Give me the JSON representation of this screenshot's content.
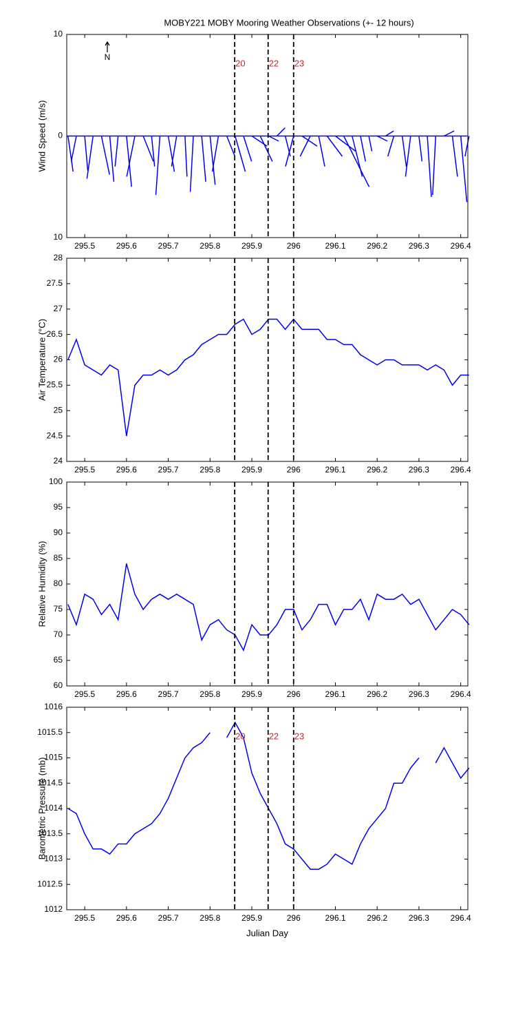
{
  "markers": {
    "x": [
      295.859,
      295.939,
      296.0
    ],
    "labels": [
      "20",
      "22",
      "23"
    ],
    "color": "#c0282d"
  },
  "chart_data": [
    {
      "type": "stick",
      "title": "MOBY221 MOBY Mooring Weather Observations (+- 12 hours)",
      "ylabel": "Wind Speed (m/s)",
      "north_label": "N",
      "color": "#0000ee",
      "x": [
        295.46,
        295.48,
        295.5,
        295.52,
        295.54,
        295.56,
        295.58,
        295.6,
        295.62,
        295.64,
        295.66,
        295.68,
        295.7,
        295.72,
        295.74,
        295.76,
        295.78,
        295.8,
        295.82,
        295.84,
        295.86,
        295.88,
        295.9,
        295.92,
        295.94,
        295.96,
        295.98,
        296.0,
        296.02,
        296.04,
        296.06,
        296.08,
        296.1,
        296.12,
        296.14,
        296.16,
        296.18,
        296.2,
        296.22,
        296.24,
        296.26,
        296.28,
        296.3,
        296.32,
        296.34,
        296.36,
        296.38,
        296.4,
        296.42
      ],
      "u": [
        0.5,
        -0.5,
        0.3,
        -0.6,
        0.8,
        0.4,
        -0.3,
        0.5,
        -0.8,
        1.0,
        0.3,
        -0.4,
        0.6,
        -0.5,
        0.2,
        -0.3,
        0.4,
        0.5,
        -0.6,
        0.8,
        1.0,
        0.8,
        1.5,
        1.2,
        1.0,
        0.8,
        0.5,
        -0.8,
        1.5,
        -1.0,
        0.6,
        1.5,
        2.0,
        2.5,
        1.0,
        0.5,
        0.3,
        1.0,
        0.8,
        -0.6,
        0.4,
        -0.5,
        0.3,
        0.4,
        -0.3,
        1.0,
        0.5,
        0.6,
        -0.4
      ],
      "v": [
        -3.5,
        -2.5,
        -3.4,
        -4.2,
        -3.8,
        -4.5,
        -3.0,
        -5.0,
        -4.0,
        -2.5,
        -3.0,
        -5.8,
        -3.5,
        -3.0,
        -4.0,
        -5.5,
        -4.5,
        -4.8,
        -3.5,
        -2.0,
        -3.5,
        -2.5,
        -1.0,
        -2.5,
        -0.5,
        0.8,
        -2.0,
        -3.0,
        -1.0,
        -2.0,
        -3.0,
        -2.0,
        -1.5,
        -5.0,
        -4.0,
        -2.5,
        -1.5,
        -0.5,
        0.5,
        -2.0,
        -3.0,
        -4.0,
        -2.5,
        -6.0,
        -5.8,
        0.5,
        -4.0,
        -6.5,
        -2.0
      ],
      "xlim": [
        295.457,
        296.417
      ],
      "xticks": [
        295.5,
        295.6,
        295.7,
        295.8,
        295.9,
        296,
        296.1,
        296.2,
        296.3,
        296.4
      ],
      "ylim": [
        -10,
        10
      ],
      "yticks": [
        {
          "value": -10,
          "label": "10"
        },
        0,
        10
      ]
    },
    {
      "type": "line",
      "ylabel": "Air Temperature (°C)",
      "color": "#0000ee",
      "x": [
        295.46,
        295.48,
        295.5,
        295.52,
        295.54,
        295.56,
        295.58,
        295.6,
        295.62,
        295.64,
        295.66,
        295.68,
        295.7,
        295.72,
        295.74,
        295.76,
        295.78,
        295.8,
        295.82,
        295.84,
        295.86,
        295.88,
        295.9,
        295.92,
        295.94,
        295.96,
        295.98,
        296.0,
        296.02,
        296.04,
        296.06,
        296.08,
        296.1,
        296.12,
        296.14,
        296.16,
        296.18,
        296.2,
        296.22,
        296.24,
        296.26,
        296.28,
        296.3,
        296.32,
        296.34,
        296.36,
        296.38,
        296.4,
        296.42
      ],
      "values": [
        26.0,
        26.4,
        25.9,
        25.8,
        25.7,
        25.9,
        25.8,
        24.5,
        25.5,
        25.7,
        25.7,
        25.8,
        25.7,
        25.8,
        26.0,
        26.1,
        26.3,
        26.4,
        26.5,
        26.5,
        26.7,
        26.8,
        26.5,
        26.6,
        26.8,
        26.8,
        26.6,
        26.8,
        26.6,
        26.6,
        26.6,
        26.4,
        26.4,
        26.3,
        26.3,
        26.1,
        26.0,
        25.9,
        26.0,
        26.0,
        25.9,
        25.9,
        25.9,
        25.8,
        25.9,
        25.8,
        25.5,
        25.7,
        25.7
      ],
      "xlim": [
        295.457,
        296.417
      ],
      "xticks": [
        295.5,
        295.6,
        295.7,
        295.8,
        295.9,
        296,
        296.1,
        296.2,
        296.3,
        296.4
      ],
      "ylim": [
        24,
        28
      ],
      "yticks": [
        24,
        24.5,
        25,
        25.5,
        26,
        26.5,
        27,
        27.5,
        28
      ]
    },
    {
      "type": "line",
      "ylabel": "Relative Humidity (%)",
      "color": "#0000ee",
      "x": [
        295.46,
        295.48,
        295.5,
        295.52,
        295.54,
        295.56,
        295.58,
        295.6,
        295.62,
        295.64,
        295.66,
        295.68,
        295.7,
        295.72,
        295.74,
        295.76,
        295.78,
        295.8,
        295.82,
        295.84,
        295.86,
        295.88,
        295.9,
        295.92,
        295.94,
        295.96,
        295.98,
        296.0,
        296.02,
        296.04,
        296.06,
        296.08,
        296.1,
        296.12,
        296.14,
        296.16,
        296.18,
        296.2,
        296.22,
        296.24,
        296.26,
        296.28,
        296.3,
        296.32,
        296.34,
        296.36,
        296.38,
        296.4,
        296.42
      ],
      "values": [
        76,
        72,
        78,
        77,
        74,
        76,
        73,
        84,
        78,
        75,
        77,
        78,
        77,
        78,
        77,
        76,
        69,
        72,
        73,
        71,
        70,
        67,
        72,
        70,
        70,
        72,
        75,
        75,
        71,
        73,
        76,
        76,
        72,
        75,
        75,
        77,
        73,
        78,
        77,
        77,
        78,
        76,
        77,
        74,
        71,
        73,
        75,
        74,
        72
      ],
      "xlim": [
        295.457,
        296.417
      ],
      "xticks": [
        295.5,
        295.6,
        295.7,
        295.8,
        295.9,
        296,
        296.1,
        296.2,
        296.3,
        296.4
      ],
      "ylim": [
        60,
        100
      ],
      "yticks": [
        60,
        65,
        70,
        75,
        80,
        85,
        90,
        95,
        100
      ]
    },
    {
      "type": "line",
      "ylabel": "Barometric Pressure (mb)",
      "xlabel": "Julian Day",
      "color": "#0000ee",
      "x": [
        295.46,
        295.48,
        295.5,
        295.52,
        295.54,
        295.56,
        295.58,
        295.6,
        295.62,
        295.64,
        295.66,
        295.68,
        295.7,
        295.72,
        295.74,
        295.76,
        295.78,
        295.8,
        295.82,
        295.84,
        295.86,
        295.88,
        295.9,
        295.92,
        295.94,
        295.96,
        295.98,
        296.0,
        296.02,
        296.04,
        296.06,
        296.08,
        296.1,
        296.12,
        296.14,
        296.16,
        296.18,
        296.2,
        296.22,
        296.24,
        296.26,
        296.28,
        296.3,
        296.32,
        296.34,
        296.36,
        296.38,
        296.4,
        296.42
      ],
      "values": [
        1014.0,
        1013.9,
        1013.5,
        1013.2,
        1013.2,
        1013.1,
        1013.3,
        1013.3,
        1013.5,
        1013.6,
        1013.7,
        1013.9,
        1014.2,
        1014.6,
        1015.0,
        1015.2,
        1015.3,
        1015.5,
        null,
        1015.4,
        1015.7,
        1015.4,
        1014.7,
        1014.3,
        1014.0,
        1013.7,
        1013.3,
        1013.2,
        1013.0,
        1012.8,
        1012.8,
        1012.9,
        1013.1,
        1013.0,
        1012.9,
        1013.3,
        1013.6,
        1013.8,
        1014.0,
        1014.5,
        1014.5,
        1014.8,
        1015.0,
        null,
        1014.9,
        1015.2,
        1014.9,
        1014.6,
        1014.8
      ],
      "xlim": [
        295.457,
        296.417
      ],
      "xticks": [
        295.5,
        295.6,
        295.7,
        295.8,
        295.9,
        296,
        296.1,
        296.2,
        296.3,
        296.4
      ],
      "ylim": [
        1012,
        1016
      ],
      "yticks": [
        1012,
        1012.5,
        1013,
        1013.5,
        1014,
        1014.5,
        1015,
        1015.5,
        1016
      ],
      "show_markers": true
    }
  ]
}
